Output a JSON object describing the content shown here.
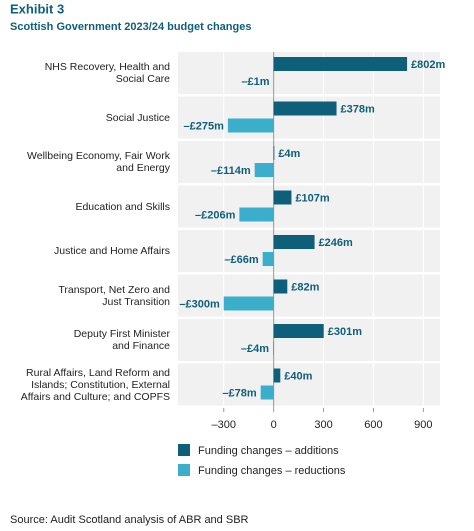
{
  "chart_data": {
    "type": "bar",
    "orientation": "horizontal",
    "title": "Exhibit 3",
    "subtitle": "Scottish Government 2023/24 budget changes",
    "categories": [
      "NHS Recovery, Health and\nSocial Care",
      "Social Justice",
      "Wellbeing Economy, Fair Work\nand Energy",
      "Education and Skills",
      "Justice and Home Affairs",
      "Transport, Net Zero and\nJust Transition",
      "Deputy First Minister\nand Finance",
      "Rural Affairs, Land Reform and\nIslands; Constitution, External\nAffairs and Culture; and COPFS"
    ],
    "series": [
      {
        "name": "Funding changes – additions",
        "color": "#0e5f7a",
        "values": [
          802,
          378,
          4,
          107,
          246,
          82,
          301,
          40
        ],
        "value_labels": [
          "£802m",
          "£378m",
          "£4m",
          "£107m",
          "£246m",
          "£82m",
          "£301m",
          "£40m"
        ]
      },
      {
        "name": "Funding changes – reductions",
        "color": "#3aaecb",
        "values": [
          -1,
          -275,
          -114,
          -206,
          -66,
          -300,
          -4,
          -78
        ],
        "value_labels": [
          "–£1m",
          "–£275m",
          "–£114m",
          "–£206m",
          "–£66m",
          "–£300m",
          "–£4m",
          "–£78m"
        ]
      }
    ],
    "xlim": [
      -575,
      1000
    ],
    "xticks": [
      {
        "value": -300,
        "label": "–300"
      },
      0,
      300,
      600,
      900
    ],
    "grid": true,
    "legend": "bottom",
    "source": "Source: Audit Scotland analysis of ABR and SBR"
  }
}
